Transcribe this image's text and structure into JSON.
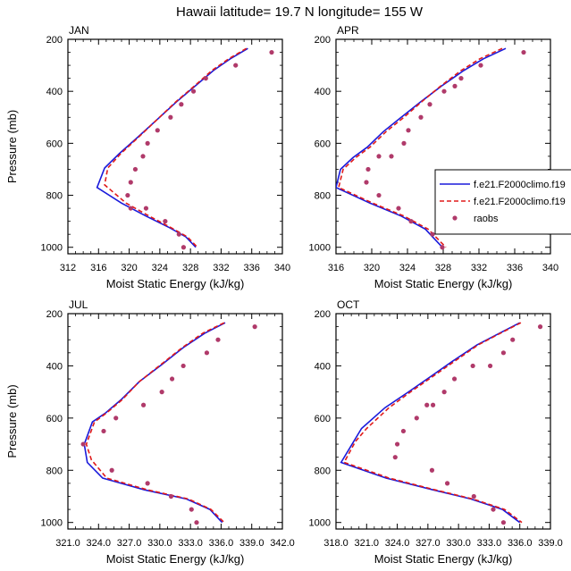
{
  "figure": {
    "title": "Hawaii  latitude= 19.7 N longitude= 155 W",
    "colors": {
      "model1": "#1a1adb",
      "model2": "#e01a1a",
      "obs": "#b03a6a"
    }
  },
  "legend": {
    "entries": [
      {
        "label": "f.e21.F2000climo.f19",
        "style": "solid",
        "color": "#1a1adb"
      },
      {
        "label": "f.e21.F2000climo.f19",
        "style": "dashed",
        "color": "#e01a1a"
      },
      {
        "label": "raobs",
        "style": "marker",
        "color": "#b03a6a"
      }
    ]
  },
  "chart_data": [
    {
      "type": "line",
      "panel": "JAN",
      "xlabel": "Moist Static Energy (kJ/kg)",
      "ylabel": "Pressure (mb)",
      "xlim": [
        312,
        340
      ],
      "ylim": [
        200,
        1025
      ],
      "y_reversed": true,
      "xticks": [
        "312",
        "316",
        "320",
        "324",
        "328",
        "332",
        "336",
        "340"
      ],
      "yticks": [
        "200",
        "400",
        "600",
        "800",
        "1000"
      ],
      "series": [
        {
          "label": "f.e21.F2000climo.f19",
          "style": "solid",
          "x": [
            335.5,
            333.2,
            331.0,
            328.6,
            326.2,
            323.6,
            321.0,
            318.7,
            316.8,
            315.8,
            319.0,
            322.2,
            325.3,
            327.4,
            328.7
          ],
          "y": [
            235,
            275,
            320,
            380,
            440,
            510,
            580,
            640,
            695,
            770,
            830,
            880,
            925,
            960,
            1000
          ]
        },
        {
          "label": "f.e21.F2000climo.f19",
          "style": "dashed",
          "x": [
            335.3,
            333.0,
            330.8,
            328.5,
            326.1,
            323.6,
            321.1,
            318.9,
            317.2,
            316.8,
            319.6,
            322.6,
            325.5,
            327.6,
            328.9
          ],
          "y": [
            235,
            275,
            320,
            380,
            440,
            510,
            580,
            640,
            695,
            760,
            830,
            880,
            925,
            960,
            1000
          ]
        },
        {
          "label": "raobs",
          "style": "marker",
          "x": [
            338.6,
            333.9,
            330.0,
            328.4,
            326.8,
            325.4,
            323.7,
            322.4,
            321.8,
            320.8,
            320.2,
            319.8,
            320.2,
            322.2,
            324.7,
            326.5,
            327.1
          ],
          "y": [
            250,
            300,
            350,
            400,
            450,
            500,
            550,
            600,
            650,
            700,
            750,
            800,
            850,
            850,
            900,
            950,
            1000
          ]
        }
      ]
    },
    {
      "type": "line",
      "panel": "APR",
      "xlabel": "Moist Static Energy (kJ/kg)",
      "ylabel": "",
      "xlim": [
        316,
        340
      ],
      "ylim": [
        200,
        1025
      ],
      "y_reversed": true,
      "xticks": [
        "316",
        "320",
        "324",
        "328",
        "332",
        "336",
        "340"
      ],
      "yticks": [
        "200",
        "400",
        "600",
        "800",
        "1000"
      ],
      "series": [
        {
          "label": "f.e21.F2000climo.f19",
          "style": "solid",
          "x": [
            335.0,
            332.5,
            330.3,
            327.8,
            325.5,
            323.3,
            321.3,
            319.5,
            317.9,
            316.5,
            316.0,
            319.8,
            323.3,
            326.0,
            327.9
          ],
          "y": [
            235,
            275,
            320,
            380,
            440,
            500,
            555,
            615,
            655,
            700,
            770,
            830,
            880,
            930,
            1000
          ]
        },
        {
          "label": "f.e21.F2000climo.f19",
          "style": "dashed",
          "x": [
            334.6,
            332.1,
            330.0,
            327.7,
            325.6,
            323.6,
            321.6,
            319.8,
            318.2,
            316.8,
            316.3,
            320.1,
            323.6,
            326.3,
            328.3
          ],
          "y": [
            235,
            275,
            320,
            380,
            440,
            500,
            555,
            615,
            655,
            700,
            770,
            830,
            880,
            930,
            1000
          ]
        },
        {
          "label": "raobs",
          "style": "marker",
          "x": [
            337.0,
            332.2,
            330.0,
            329.3,
            328.1,
            326.5,
            325.5,
            324.1,
            323.6,
            322.2,
            320.8,
            319.6,
            319.4,
            320.8,
            323.0,
            324.4,
            326.8,
            327.9
          ],
          "y": [
            250,
            300,
            350,
            380,
            400,
            450,
            500,
            550,
            600,
            650,
            650,
            700,
            750,
            800,
            850,
            900,
            950,
            1000
          ]
        }
      ]
    },
    {
      "type": "line",
      "panel": "JUL",
      "xlabel": "Moist Static Energy (kJ/kg)",
      "ylabel": "Pressure (mb)",
      "xlim": [
        321,
        342
      ],
      "ylim": [
        200,
        1025
      ],
      "y_reversed": true,
      "xticks": [
        "321.0",
        "324.0",
        "327.0",
        "330.0",
        "333.0",
        "336.0",
        "339.0",
        "342.0"
      ],
      "yticks": [
        "200",
        "400",
        "600",
        "800",
        "1000"
      ],
      "series": [
        {
          "label": "f.e21.F2000climo.f19",
          "style": "solid",
          "x": [
            336.4,
            334.4,
            332.3,
            330.2,
            328.0,
            326.2,
            324.7,
            323.4,
            322.6,
            322.9,
            324.4,
            328.5,
            332.6,
            334.9,
            336.1
          ],
          "y": [
            235,
            275,
            330,
            395,
            460,
            530,
            580,
            615,
            700,
            770,
            830,
            875,
            910,
            950,
            1000
          ]
        },
        {
          "label": "f.e21.F2000climo.f19",
          "style": "dashed",
          "x": [
            336.3,
            334.2,
            332.2,
            330.1,
            328.0,
            326.3,
            324.8,
            323.6,
            322.8,
            323.3,
            324.8,
            328.8,
            332.8,
            335.0,
            336.3
          ],
          "y": [
            235,
            275,
            330,
            395,
            460,
            530,
            580,
            615,
            700,
            760,
            830,
            875,
            910,
            950,
            1000
          ]
        },
        {
          "label": "raobs",
          "style": "marker",
          "x": [
            339.3,
            335.7,
            334.6,
            332.3,
            331.2,
            330.2,
            328.4,
            325.7,
            324.5,
            322.5,
            325.3,
            328.8,
            331.1,
            333.1,
            333.6
          ],
          "y": [
            250,
            300,
            350,
            400,
            450,
            500,
            550,
            600,
            650,
            700,
            800,
            850,
            900,
            950,
            1000
          ]
        }
      ]
    },
    {
      "type": "line",
      "panel": "OCT",
      "xlabel": "Moist Static Energy (kJ/kg)",
      "ylabel": "",
      "xlim": [
        318,
        339
      ],
      "ylim": [
        200,
        1025
      ],
      "y_reversed": true,
      "xticks": [
        "318.0",
        "321.0",
        "324.0",
        "327.0",
        "330.0",
        "333.0",
        "336.0",
        "339.0"
      ],
      "yticks": [
        "200",
        "400",
        "600",
        "800",
        "1000"
      ],
      "series": [
        {
          "label": "f.e21.F2000climo.f19",
          "style": "solid",
          "x": [
            336.0,
            334.0,
            331.8,
            329.5,
            327.3,
            325.1,
            322.8,
            320.5,
            318.5,
            322.9,
            327.5,
            331.2,
            334.3,
            336.0
          ],
          "y": [
            235,
            275,
            320,
            380,
            440,
            500,
            560,
            640,
            770,
            830,
            875,
            910,
            950,
            1000
          ]
        },
        {
          "label": "f.e21.F2000climo.f19",
          "style": "dashed",
          "x": [
            336.1,
            334.1,
            331.9,
            329.7,
            327.5,
            325.3,
            323.2,
            321.0,
            319.9,
            318.8,
            323.2,
            327.7,
            331.4,
            334.5,
            336.2
          ],
          "y": [
            235,
            275,
            320,
            380,
            440,
            500,
            560,
            640,
            690,
            770,
            830,
            875,
            910,
            950,
            1000
          ]
        },
        {
          "label": "raobs",
          "style": "marker",
          "x": [
            338.0,
            335.3,
            334.4,
            333.1,
            331.4,
            329.6,
            328.6,
            327.5,
            326.9,
            325.9,
            324.6,
            324.0,
            323.8,
            327.4,
            328.9,
            331.5,
            333.4,
            334.4
          ],
          "y": [
            250,
            300,
            350,
            400,
            400,
            450,
            500,
            550,
            550,
            600,
            650,
            700,
            750,
            800,
            850,
            900,
            950,
            1000
          ]
        }
      ]
    }
  ]
}
